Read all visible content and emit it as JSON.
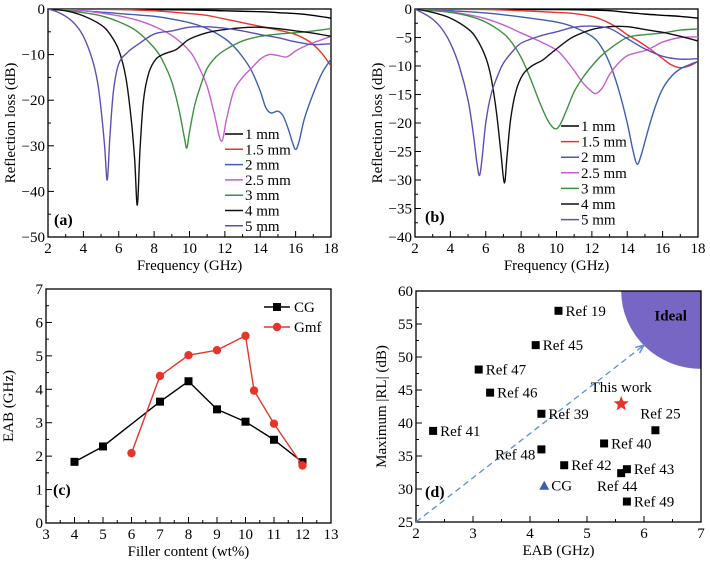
{
  "chart_data": [
    {
      "id": "a",
      "type": "line",
      "panel_label": "(a)",
      "xlabel": "Frequency (GHz)",
      "ylabel": "Reflection loss (dB)",
      "xlim": [
        2,
        18
      ],
      "ylim": [
        -50,
        0
      ],
      "xticks": [
        2,
        4,
        6,
        8,
        10,
        12,
        14,
        16,
        18
      ],
      "yticks": [
        0,
        -10,
        -20,
        -30,
        -40,
        -50
      ],
      "xtick_labels": [
        "2",
        "4",
        "6",
        "8",
        "10",
        "12",
        "14",
        "16",
        "18"
      ],
      "ytick_labels": [
        "0",
        "−10",
        "−20",
        "−30",
        "−40",
        "−50"
      ],
      "legend_position": "bottom-right",
      "series": [
        {
          "name": "1 mm",
          "color": "#000000",
          "x": [
            2,
            6,
            10,
            12,
            14,
            15,
            16,
            17,
            18
          ],
          "y": [
            0,
            -0.1,
            -0.2,
            -0.4,
            -0.6,
            -0.8,
            -1.0,
            -1.4,
            -2.0
          ]
        },
        {
          "name": "1.5 mm",
          "color": "#e8352a",
          "x": [
            2,
            6,
            8,
            10,
            11,
            12,
            13,
            14,
            15,
            16,
            16.5,
            17,
            17.5,
            18
          ],
          "y": [
            0,
            -0.1,
            -0.4,
            -1.0,
            -1.4,
            -2.2,
            -3.0,
            -3.8,
            -4.6,
            -5.6,
            -6.5,
            -7.8,
            -9.8,
            -12.5
          ]
        },
        {
          "name": "2 mm",
          "color": "#3d5fb0",
          "x": [
            2,
            4,
            6,
            8,
            9,
            10,
            11,
            12,
            12.5,
            13,
            13.5,
            14,
            14.3,
            14.6,
            15,
            15.3,
            15.6,
            15.8,
            16,
            16.2,
            16.5,
            17,
            17.5,
            18
          ],
          "y": [
            0,
            -0.4,
            -1.0,
            -1.6,
            -2.2,
            -3.0,
            -4.3,
            -6.5,
            -8.2,
            -10.5,
            -13.5,
            -18,
            -21.5,
            -22.8,
            -22.4,
            -23.5,
            -26.5,
            -29,
            -30.8,
            -29,
            -24,
            -18.5,
            -14,
            -11
          ]
        },
        {
          "name": "2.5 mm",
          "color": "#c55fd0",
          "x": [
            2,
            4,
            5,
            6,
            7,
            8,
            9,
            10,
            10.5,
            11,
            11.4,
            11.8,
            12.1,
            12.5,
            13,
            13.5,
            14,
            14.5,
            15,
            15.5,
            16,
            16.5,
            17,
            18
          ],
          "y": [
            0,
            -0.4,
            -0.9,
            -1.5,
            -2.4,
            -3.8,
            -5.8,
            -9.2,
            -12.5,
            -17,
            -23,
            -29,
            -24,
            -18,
            -15,
            -13,
            -11,
            -10,
            -10.2,
            -10.5,
            -9.2,
            -8.2,
            -7.4,
            -6
          ]
        },
        {
          "name": "3 mm",
          "color": "#3d9142",
          "x": [
            2,
            3,
            4,
            5,
            6,
            7,
            8,
            8.5,
            9,
            9.4,
            9.7,
            9.85,
            10,
            10.3,
            10.7,
            11,
            11.5,
            12,
            13,
            14,
            15,
            16,
            17,
            18
          ],
          "y": [
            0,
            -0.3,
            -0.8,
            -1.5,
            -2.8,
            -4.8,
            -8.5,
            -11.5,
            -16,
            -22,
            -28,
            -30.5,
            -27,
            -21,
            -16,
            -13,
            -10.5,
            -9,
            -7,
            -6,
            -5.5,
            -5.2,
            -4.8,
            -4.3
          ]
        },
        {
          "name": "4 mm",
          "color": "#111111",
          "x": [
            2,
            3,
            4,
            5,
            5.5,
            6,
            6.4,
            6.7,
            6.9,
            7.05,
            7.2,
            7.4,
            7.7,
            8.1,
            8.6,
            9.2,
            9.6,
            10,
            11,
            12,
            13,
            14,
            15,
            16,
            17,
            18
          ],
          "y": [
            0,
            -0.4,
            -1.5,
            -3.5,
            -5.5,
            -9,
            -15,
            -24,
            -33,
            -43,
            -31,
            -20,
            -14,
            -11,
            -9.8,
            -9,
            -7.8,
            -6.6,
            -5.2,
            -4.5,
            -4.1,
            -4.0,
            -4.3,
            -4.8,
            -5.3,
            -6
          ]
        },
        {
          "name": "5 mm",
          "color": "#5b50b5",
          "x": [
            2,
            2.5,
            3,
            3.5,
            4,
            4.5,
            4.8,
            5.0,
            5.2,
            5.35,
            5.5,
            5.7,
            6,
            6.5,
            7,
            8,
            9,
            10,
            11,
            12,
            13,
            14,
            15,
            16,
            17,
            18
          ],
          "y": [
            0,
            -0.6,
            -1.6,
            -3.2,
            -6,
            -11,
            -16,
            -22,
            -30,
            -37.5,
            -28,
            -18,
            -12,
            -9.5,
            -8,
            -5.5,
            -4.8,
            -4.0,
            -3.9,
            -4.2,
            -4.8,
            -5.6,
            -6.3,
            -7.2,
            -7.8,
            -7.6
          ]
        }
      ]
    },
    {
      "id": "b",
      "type": "line",
      "panel_label": "(b)",
      "xlabel": "Frequency (GHz)",
      "ylabel": "Reflection loss (dB)",
      "xlim": [
        2,
        18
      ],
      "ylim": [
        -40,
        0
      ],
      "xticks": [
        2,
        4,
        6,
        8,
        10,
        12,
        14,
        16,
        18
      ],
      "yticks": [
        0,
        -5,
        -10,
        -15,
        -20,
        -25,
        -30,
        -35,
        -40
      ],
      "xtick_labels": [
        "2",
        "4",
        "6",
        "8",
        "10",
        "12",
        "14",
        "16",
        "18"
      ],
      "ytick_labels": [
        "0",
        "−5",
        "−10",
        "−15",
        "−20",
        "−25",
        "−30",
        "−35",
        "−40"
      ],
      "legend_position": "bottom-right",
      "series": [
        {
          "name": "1 mm",
          "color": "#000000",
          "x": [
            2,
            6,
            10,
            12,
            13,
            14,
            15,
            16,
            17,
            18
          ],
          "y": [
            0,
            -0.05,
            -0.1,
            -0.2,
            -0.3,
            -0.6,
            -0.9,
            -1.1,
            -1.3,
            -1.6
          ]
        },
        {
          "name": "1.5 mm",
          "color": "#e8352a",
          "x": [
            2,
            6,
            8,
            10,
            11,
            12,
            12.5,
            13,
            13.5,
            14,
            14.5,
            15,
            15.5,
            16,
            16.5,
            17,
            17.5,
            18
          ],
          "y": [
            0,
            -0.1,
            -0.3,
            -0.6,
            -0.8,
            -1.3,
            -1.8,
            -2.5,
            -3.4,
            -4.5,
            -5.4,
            -6.4,
            -7.5,
            -8.7,
            -9.8,
            -10.3,
            -10,
            -9.2
          ]
        },
        {
          "name": "2 mm",
          "color": "#3d5fb0",
          "x": [
            2,
            4,
            6,
            8,
            10,
            11,
            12,
            12.5,
            13,
            13.5,
            14,
            14.3,
            14.55,
            14.8,
            15.2,
            15.6,
            16,
            16.5,
            17,
            17.5,
            18
          ],
          "y": [
            0,
            -0.3,
            -0.7,
            -1.4,
            -2.3,
            -3.2,
            -4.8,
            -6.5,
            -9.5,
            -14,
            -20,
            -24.5,
            -27.2,
            -25.5,
            -21,
            -17,
            -14,
            -11.8,
            -10.5,
            -9.8,
            -9.2
          ]
        },
        {
          "name": "2.5 mm",
          "color": "#c55fd0",
          "x": [
            2,
            4,
            5,
            6,
            7,
            8,
            9,
            10,
            10.5,
            11,
            11.5,
            12,
            12.25,
            12.6,
            13,
            13.5,
            14,
            14.5,
            15,
            15.5,
            16,
            17,
            18
          ],
          "y": [
            0,
            -0.5,
            -1,
            -1.7,
            -2.8,
            -4.2,
            -5.6,
            -7.2,
            -8.8,
            -10.8,
            -13,
            -14.5,
            -14.8,
            -13.8,
            -11.5,
            -9.5,
            -8.2,
            -7.7,
            -7.3,
            -6.6,
            -5.8,
            -5.0,
            -4.9
          ]
        },
        {
          "name": "3 mm",
          "color": "#3d9142",
          "x": [
            2,
            3,
            4,
            5,
            6,
            7,
            7.5,
            8,
            8.5,
            9,
            9.5,
            9.9,
            10.2,
            10.6,
            11,
            11.5,
            12,
            12.5,
            13,
            14,
            15,
            16,
            17,
            18
          ],
          "y": [
            0,
            -0.3,
            -0.6,
            -1.2,
            -2.3,
            -4.3,
            -6,
            -8.5,
            -12,
            -16,
            -19.5,
            -21,
            -20.3,
            -17.5,
            -14.5,
            -12,
            -10,
            -8.3,
            -7,
            -5,
            -4.5,
            -4.2,
            -3.7,
            -3.5
          ]
        },
        {
          "name": "4 mm",
          "color": "#111111",
          "x": [
            2,
            3,
            4,
            5,
            5.5,
            6,
            6.3,
            6.6,
            6.85,
            7.05,
            7.2,
            7.4,
            7.7,
            8.1,
            8.6,
            9.2,
            9.6,
            10,
            10.5,
            11,
            12,
            13,
            14,
            15,
            16,
            17,
            18
          ],
          "y": [
            0,
            -0.6,
            -1.6,
            -3.5,
            -5.3,
            -8.5,
            -12,
            -18,
            -25,
            -30.5,
            -26,
            -19.5,
            -14.5,
            -11.5,
            -10,
            -9,
            -8,
            -7,
            -5.8,
            -4.8,
            -3.6,
            -3.1,
            -3.1,
            -3.6,
            -4.1,
            -4.8,
            -5.6
          ]
        },
        {
          "name": "5 mm",
          "color": "#5b50b5",
          "x": [
            2,
            2.5,
            3,
            3.5,
            4,
            4.5,
            5,
            5.3,
            5.5,
            5.65,
            5.8,
            6,
            6.3,
            6.7,
            7,
            7.5,
            8,
            9,
            10,
            11,
            12,
            13,
            14,
            15,
            16,
            17,
            18
          ],
          "y": [
            0,
            -0.8,
            -1.8,
            -3.4,
            -6,
            -10,
            -16,
            -22,
            -27,
            -29.2,
            -26,
            -20,
            -15,
            -11.5,
            -9.5,
            -7.5,
            -6,
            -4.8,
            -4.0,
            -3.2,
            -3.0,
            -3.4,
            -5.2,
            -7.0,
            -8.3,
            -8.8,
            -8.7
          ]
        }
      ]
    },
    {
      "id": "c",
      "type": "line",
      "panel_label": "(c)",
      "xlabel": "Filler content (wt%)",
      "ylabel": "EAB (GHz)",
      "xlim": [
        3,
        13
      ],
      "ylim": [
        0,
        7
      ],
      "xticks": [
        3,
        4,
        5,
        6,
        7,
        8,
        9,
        10,
        11,
        12,
        13
      ],
      "yticks": [
        0,
        1,
        2,
        3,
        4,
        5,
        6,
        7
      ],
      "xtick_labels": [
        "3",
        "4",
        "5",
        "6",
        "7",
        "8",
        "9",
        "10",
        "11",
        "12",
        "13"
      ],
      "ytick_labels": [
        "0",
        "1",
        "2",
        "3",
        "4",
        "5",
        "6",
        "7"
      ],
      "legend_position": "top-right",
      "series": [
        {
          "name": "CG",
          "color": "#000000",
          "marker": "square",
          "x": [
            4,
            5,
            7,
            8,
            9,
            10,
            11,
            12
          ],
          "y": [
            1.83,
            2.29,
            3.63,
            4.24,
            3.4,
            3.03,
            2.49,
            1.82
          ]
        },
        {
          "name": "Gmf",
          "color": "#e8352a",
          "marker": "circle",
          "x": [
            6,
            7,
            8,
            9,
            10,
            10.3,
            11,
            12
          ],
          "y": [
            2.09,
            4.4,
            5.02,
            5.17,
            5.6,
            3.96,
            2.97,
            1.72
          ]
        }
      ]
    },
    {
      "id": "d",
      "type": "scatter",
      "panel_label": "(d)",
      "xlabel": "EAB (GHz)",
      "ylabel": "Maximum |RL|  (dB)",
      "xlim": [
        2,
        7
      ],
      "ylim": [
        25,
        60
      ],
      "xticks": [
        2,
        3,
        4,
        5,
        6,
        7
      ],
      "yticks": [
        25,
        30,
        35,
        40,
        45,
        50,
        55,
        60
      ],
      "xtick_labels": [
        "2",
        "3",
        "4",
        "5",
        "6",
        "7"
      ],
      "ytick_labels": [
        "25",
        "30",
        "35",
        "40",
        "45",
        "50",
        "55",
        "60"
      ],
      "ideal_region": {
        "label": "Ideal",
        "center": [
          7,
          60
        ],
        "radius_x": 1.4,
        "radius_y": 11.8,
        "color": "#7766c4",
        "label_color": "#f0e060"
      },
      "arrow": {
        "from": [
          2,
          25
        ],
        "to": [
          6.0,
          51.8
        ],
        "color": "#5b8fd0"
      },
      "points": [
        {
          "label": "Ref 19",
          "x": 4.5,
          "y": 57.0,
          "marker": "square",
          "color": "#000000",
          "label_pos": "right"
        },
        {
          "label": "Ref 45",
          "x": 4.1,
          "y": 51.8,
          "marker": "square",
          "color": "#000000",
          "label_pos": "right"
        },
        {
          "label": "Ref 47",
          "x": 3.1,
          "y": 48.1,
          "marker": "square",
          "color": "#000000",
          "label_pos": "right"
        },
        {
          "label": "Ref 46",
          "x": 3.3,
          "y": 44.6,
          "marker": "square",
          "color": "#000000",
          "label_pos": "right"
        },
        {
          "label": "Ref 39",
          "x": 4.2,
          "y": 41.4,
          "marker": "square",
          "color": "#000000",
          "label_pos": "right"
        },
        {
          "label": "Ref 41",
          "x": 2.3,
          "y": 38.8,
          "marker": "square",
          "color": "#000000",
          "label_pos": "right"
        },
        {
          "label": "Ref 48",
          "x": 4.2,
          "y": 36.0,
          "marker": "square",
          "color": "#000000",
          "label_pos": "left-below"
        },
        {
          "label": "Ref 42",
          "x": 4.6,
          "y": 33.6,
          "marker": "square",
          "color": "#000000",
          "label_pos": "right"
        },
        {
          "label": "Ref 40",
          "x": 5.3,
          "y": 36.9,
          "marker": "square",
          "color": "#000000",
          "label_pos": "right"
        },
        {
          "label": "Ref 25",
          "x": 6.2,
          "y": 38.9,
          "marker": "square",
          "color": "#000000",
          "label_pos": "above"
        },
        {
          "label": "Ref 43",
          "x": 5.7,
          "y": 33.0,
          "marker": "square",
          "color": "#000000",
          "label_pos": "right"
        },
        {
          "label": "Ref 44",
          "x": 5.6,
          "y": 32.4,
          "marker": "square",
          "color": "#000000",
          "label_pos": "below"
        },
        {
          "label": "Ref 49",
          "x": 5.7,
          "y": 28.1,
          "marker": "square",
          "color": "#000000",
          "label_pos": "right"
        },
        {
          "label": "This work",
          "x": 5.6,
          "y": 42.9,
          "marker": "star",
          "color": "#e8352a",
          "label_pos": "above"
        },
        {
          "label": "CG",
          "x": 4.25,
          "y": 30.5,
          "marker": "triangle",
          "color": "#3d5fb0",
          "label_pos": "right"
        }
      ]
    }
  ]
}
